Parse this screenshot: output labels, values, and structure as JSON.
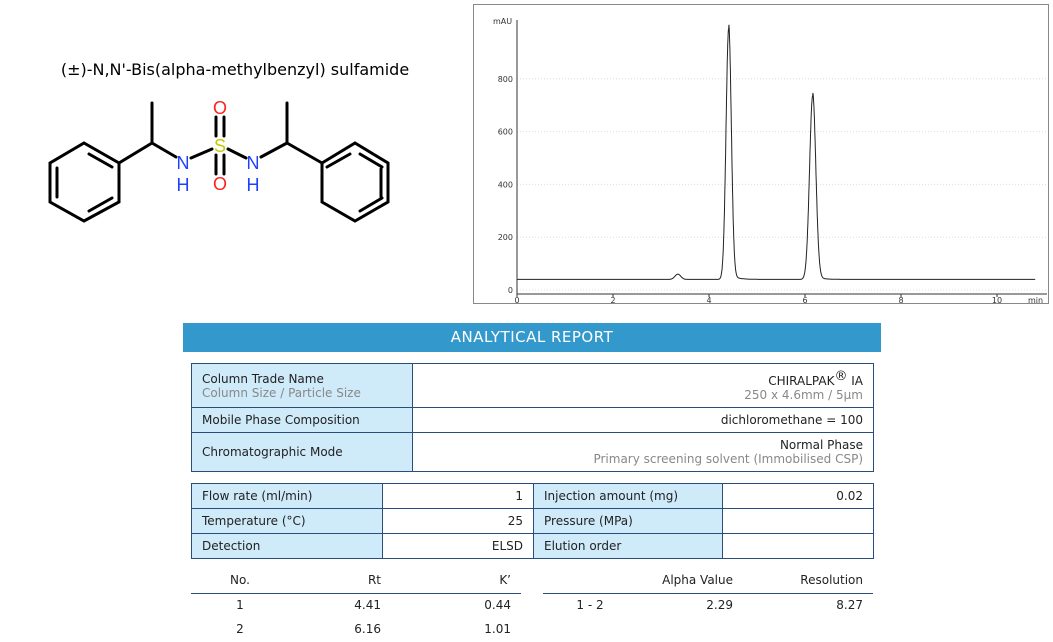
{
  "compound_name": "(±)-N,N'-Bis(alpha-methylbenzyl) sulfamide",
  "structure_atoms": {
    "n1": "N",
    "h1": "H",
    "s": "S",
    "o1": "O",
    "o2": "O",
    "n2": "N",
    "h2": "H"
  },
  "colors": {
    "header": "#3399cc",
    "label_cell": "#cfeaf9",
    "border": "#2a4d7a",
    "nitrogen": "#2040ff",
    "oxygen": "#ff2020",
    "sulfur": "#c8c800"
  },
  "report": {
    "title": "ANALYTICAL REPORT",
    "column": {
      "label": "Column Trade Name",
      "sublabel": "Column Size / Particle Size",
      "value": "CHIRALPAK",
      "reg": "®",
      "value_suffix": " IA",
      "subvalue": "250 x 4.6mm / 5µm"
    },
    "mobile_phase": {
      "label": "Mobile Phase Composition",
      "value": "dichloromethane = 100"
    },
    "mode": {
      "label": "Chromatographic Mode",
      "value": "Normal Phase",
      "subvalue": "Primary screening solvent (Immobilised CSP)"
    },
    "conditions": [
      {
        "label": "Flow rate (ml/min)",
        "value": "1",
        "label2": "Injection amount (mg)",
        "value2": "0.02"
      },
      {
        "label": "Temperature (°C)",
        "value": "25",
        "label2": "Pressure (MPa)",
        "value2": ""
      },
      {
        "label": "Detection",
        "value": "ELSD",
        "label2": "Elution order",
        "value2": ""
      }
    ],
    "results": {
      "headers": {
        "no": "No.",
        "rt": "Rt",
        "k": "K’",
        "pair": "",
        "alpha": "Alpha Value",
        "resolution": "Resolution"
      },
      "peaks": [
        {
          "no": "1",
          "rt": "4.41",
          "k": "0.44"
        },
        {
          "no": "2",
          "rt": "6.16",
          "k": "1.01"
        }
      ],
      "pairs": [
        {
          "pair": "1 - 2",
          "alpha": "2.29",
          "resolution": "8.27"
        }
      ]
    }
  },
  "chart_data": {
    "type": "line",
    "ylabel": "mAU",
    "xlabel": "min",
    "xlim": [
      0,
      10.8
    ],
    "ylim": [
      0,
      1000
    ],
    "xticks": [
      "0",
      "2",
      "4",
      "6",
      "8",
      "10"
    ],
    "yticks": [
      "0",
      "200",
      "400",
      "600",
      "800"
    ],
    "grid": true,
    "baseline": 40,
    "peaks": [
      {
        "rt": 3.35,
        "height": 60,
        "width": 0.06
      },
      {
        "rt": 4.41,
        "height": 990,
        "width": 0.055
      },
      {
        "rt": 6.16,
        "height": 735,
        "width": 0.065
      }
    ]
  }
}
